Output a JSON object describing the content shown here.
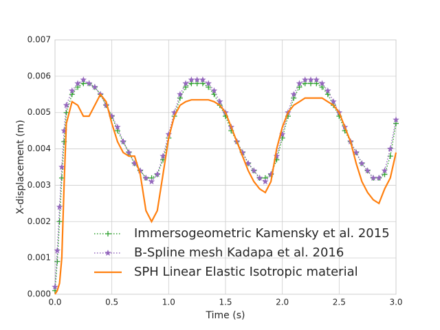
{
  "chart_data": {
    "type": "line",
    "xlabel": "Time (s)",
    "ylabel": "X-displacement (m)",
    "x": [
      0,
      0.02,
      0.04,
      0.06,
      0.08,
      0.1,
      0.15,
      0.2,
      0.25,
      0.3,
      0.35,
      0.4,
      0.45,
      0.5,
      0.55,
      0.6,
      0.65,
      0.7,
      0.75,
      0.8,
      0.85,
      0.9,
      0.95,
      1.0,
      1.05,
      1.1,
      1.15,
      1.2,
      1.25,
      1.3,
      1.35,
      1.4,
      1.45,
      1.5,
      1.55,
      1.6,
      1.65,
      1.7,
      1.75,
      1.8,
      1.85,
      1.9,
      1.95,
      2.0,
      2.05,
      2.1,
      2.15,
      2.2,
      2.25,
      2.3,
      2.35,
      2.4,
      2.45,
      2.5,
      2.55,
      2.6,
      2.65,
      2.7,
      2.75,
      2.8,
      2.85,
      2.9,
      2.95,
      3.0
    ],
    "series": [
      {
        "name": "Immersogeometric Kamensky et al. 2015",
        "color": "#2ca02c",
        "marker": "plus",
        "linestyle": "dotted",
        "values": [
          0.0001,
          0.0009,
          0.002,
          0.0032,
          0.0042,
          0.005,
          0.0055,
          0.0057,
          0.0058,
          0.0058,
          0.0057,
          0.0055,
          0.0052,
          0.0049,
          0.0045,
          0.0042,
          0.0039,
          0.0036,
          0.0034,
          0.0032,
          0.0032,
          0.0033,
          0.0037,
          0.0043,
          0.0049,
          0.0054,
          0.0057,
          0.0058,
          0.0058,
          0.0058,
          0.0057,
          0.0055,
          0.0052,
          0.0049,
          0.0045,
          0.0042,
          0.0039,
          0.0036,
          0.0034,
          0.0032,
          0.0032,
          0.0033,
          0.0037,
          0.0043,
          0.0049,
          0.0054,
          0.0057,
          0.0058,
          0.0058,
          0.0058,
          0.0057,
          0.0055,
          0.0052,
          0.0049,
          0.0045,
          0.0042,
          0.0039,
          0.0036,
          0.0034,
          0.0032,
          0.0032,
          0.0033,
          0.0038,
          0.0047
        ]
      },
      {
        "name": "B-Spline mesh Kadapa et al. 2016",
        "color": "#9467bd",
        "marker": "star",
        "linestyle": "dotted",
        "values": [
          0.0002,
          0.0012,
          0.0024,
          0.0035,
          0.0045,
          0.0052,
          0.0056,
          0.0058,
          0.0059,
          0.0058,
          0.0057,
          0.0055,
          0.0052,
          0.0049,
          0.0046,
          0.0042,
          0.0039,
          0.0036,
          0.0034,
          0.0032,
          0.0031,
          0.0033,
          0.0038,
          0.0044,
          0.005,
          0.0055,
          0.0058,
          0.0059,
          0.0059,
          0.0059,
          0.0058,
          0.0056,
          0.0053,
          0.005,
          0.0046,
          0.0042,
          0.0039,
          0.0036,
          0.0034,
          0.0032,
          0.0031,
          0.0033,
          0.0038,
          0.0044,
          0.005,
          0.0055,
          0.0058,
          0.0059,
          0.0059,
          0.0059,
          0.0058,
          0.0056,
          0.0053,
          0.005,
          0.0046,
          0.0042,
          0.0039,
          0.0036,
          0.0034,
          0.0032,
          0.0032,
          0.0034,
          0.004,
          0.0048
        ]
      },
      {
        "name": "SPH Linear Elastic Isotropic material",
        "color": "#ff7f0e",
        "marker": "none",
        "linestyle": "solid",
        "values": [
          0,
          0.0001,
          0.0003,
          0.001,
          0.003,
          0.0047,
          0.0053,
          0.0052,
          0.0049,
          0.0049,
          0.0052,
          0.0055,
          0.0053,
          0.0047,
          0.0042,
          0.0039,
          0.0038,
          0.0038,
          0.0033,
          0.0023,
          0.002,
          0.0023,
          0.0033,
          0.0043,
          0.0049,
          0.0052,
          0.0053,
          0.00535,
          0.00535,
          0.00535,
          0.00535,
          0.0053,
          0.0052,
          0.005,
          0.0046,
          0.0042,
          0.0038,
          0.0034,
          0.0031,
          0.0029,
          0.0028,
          0.0031,
          0.004,
          0.0046,
          0.005,
          0.0052,
          0.0053,
          0.0054,
          0.0054,
          0.0054,
          0.0054,
          0.0053,
          0.0052,
          0.005,
          0.0046,
          0.0042,
          0.0036,
          0.0031,
          0.0028,
          0.0026,
          0.0025,
          0.0029,
          0.0032,
          0.0039
        ]
      }
    ],
    "xlim": [
      0,
      3
    ],
    "ylim": [
      0,
      0.007
    ],
    "xticks": [
      {
        "value": 0,
        "label": "0.0"
      },
      0.5,
      {
        "value": 1,
        "label": "1.0"
      },
      1.5,
      {
        "value": 2,
        "label": "2.0"
      },
      2.5,
      {
        "value": 3,
        "label": "3.0"
      }
    ],
    "yticks": [
      {
        "value": 0,
        "label": "0.000"
      },
      {
        "value": 0.001,
        "label": "0.001"
      },
      {
        "value": 0.002,
        "label": "0.002"
      },
      {
        "value": 0.003,
        "label": "0.003"
      },
      {
        "value": 0.004,
        "label": "0.004"
      },
      {
        "value": 0.005,
        "label": "0.005"
      },
      {
        "value": 0.006,
        "label": "0.006"
      },
      {
        "value": 0.007,
        "label": "0.007"
      }
    ],
    "grid": true,
    "legend": "lower center"
  }
}
